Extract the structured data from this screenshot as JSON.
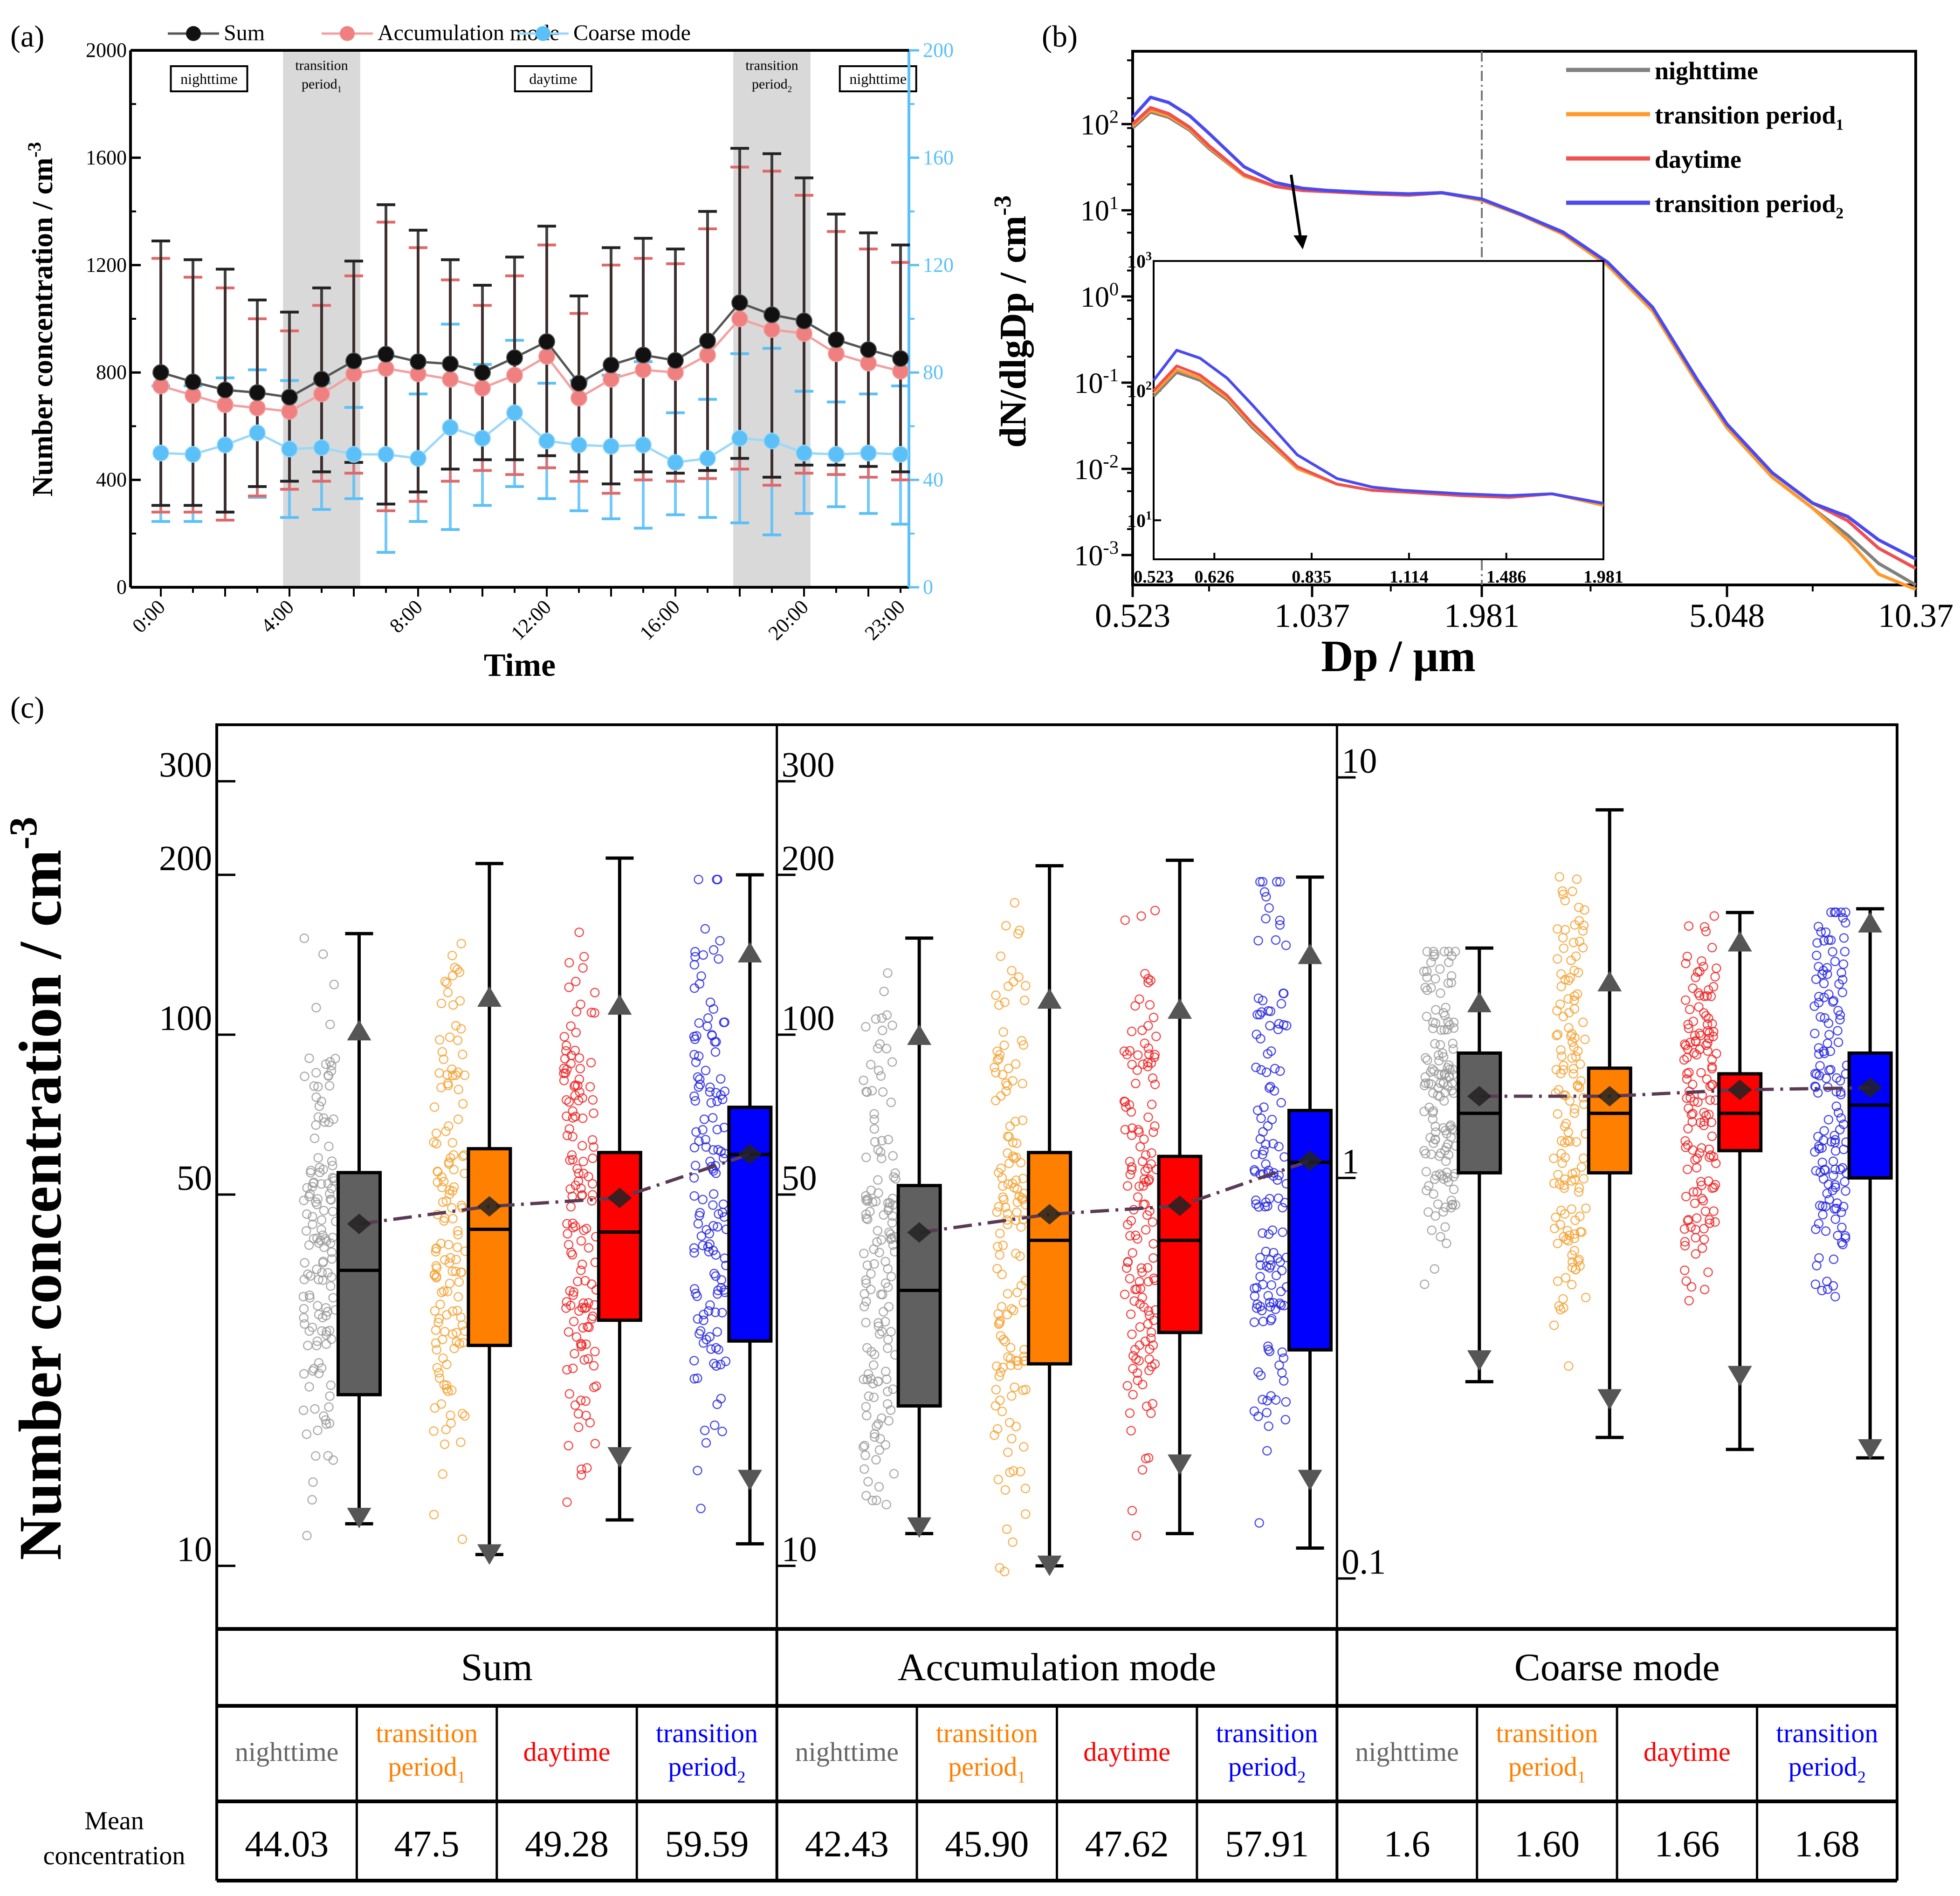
{
  "chart_data": [
    {
      "panel": "(a)",
      "type": "line",
      "xlabel": "Time",
      "ylabel": "Number concentration / cm-3",
      "ylim_left": [
        0,
        2000
      ],
      "yticks_left": [
        "0",
        "400",
        "800",
        "1200",
        "1600",
        "2000"
      ],
      "ylim_right": [
        0,
        200
      ],
      "yticks_right": [
        "0",
        "40",
        "80",
        "120",
        "160",
        "200"
      ],
      "xticks": [
        "0:00",
        "4:00",
        "8:00",
        "12:00",
        "16:00",
        "20:00",
        "23:00"
      ],
      "x": [
        0,
        1,
        2,
        3,
        4,
        5,
        6,
        7,
        8,
        9,
        10,
        11,
        12,
        13,
        14,
        15,
        16,
        17,
        18,
        19,
        20,
        21,
        22,
        23
      ],
      "shaded_periods": [
        {
          "label": "transition period",
          "sub": "1",
          "from": 3.8,
          "to": 6.2
        },
        {
          "label": "transition period",
          "sub": "2",
          "from": 17.8,
          "to": 20.2
        }
      ],
      "period_boxes": [
        {
          "label": "nighttime",
          "at": 1.5
        },
        {
          "label": "daytime",
          "at": 12.2
        },
        {
          "label": "nighttime",
          "at": 22.3
        }
      ],
      "legend": [
        "Sum",
        "Accumulation mode",
        "Coarse mode"
      ],
      "series": [
        {
          "name": "Sum",
          "axis": "left",
          "color": "#000000",
          "values": [
            800,
            765,
            735,
            725,
            708,
            775,
            843,
            868,
            840,
            832,
            800,
            855,
            915,
            760,
            828,
            865,
            845,
            918,
            1060,
            1015,
            992,
            922,
            885,
            852
          ],
          "upper": [
            1290,
            1220,
            1185,
            1070,
            1025,
            1115,
            1215,
            1425,
            1330,
            1220,
            1125,
            1230,
            1345,
            1085,
            1265,
            1300,
            1260,
            1400,
            1635,
            1615,
            1525,
            1390,
            1320,
            1275
          ],
          "lower": [
            305,
            305,
            280,
            375,
            395,
            430,
            465,
            310,
            355,
            440,
            475,
            475,
            490,
            430,
            385,
            430,
            425,
            435,
            480,
            410,
            455,
            455,
            450,
            430
          ]
        },
        {
          "name": "Accumulation mode",
          "axis": "left",
          "color": "#f08080",
          "values": [
            750,
            715,
            680,
            668,
            655,
            720,
            795,
            815,
            795,
            775,
            742,
            790,
            860,
            705,
            775,
            810,
            800,
            865,
            1000,
            960,
            945,
            870,
            835,
            805
          ],
          "upper": [
            1225,
            1155,
            1115,
            1000,
            955,
            1050,
            1160,
            1360,
            1265,
            1145,
            1050,
            1160,
            1275,
            1020,
            1200,
            1225,
            1205,
            1335,
            1565,
            1550,
            1460,
            1325,
            1260,
            1210
          ],
          "lower": [
            280,
            280,
            250,
            340,
            365,
            395,
            425,
            285,
            320,
            395,
            435,
            420,
            445,
            395,
            350,
            400,
            395,
            405,
            440,
            380,
            425,
            420,
            410,
            400
          ]
        },
        {
          "name": "Coarse mode",
          "axis": "right",
          "color": "#5bc0f8",
          "values": [
            50,
            49.5,
            53,
            57.5,
            51.5,
            52,
            49.5,
            49.5,
            48,
            59.5,
            55.5,
            65,
            54.5,
            53,
            52.5,
            53,
            46.5,
            48,
            55.5,
            54.5,
            50,
            49.5,
            50,
            49.5
          ],
          "upper": [
            75,
            75,
            78,
            81,
            77,
            76,
            67,
            86,
            72,
            98,
            83,
            92,
            76,
            77,
            79,
            84,
            65,
            70,
            87,
            89,
            73,
            69,
            72,
            75
          ],
          "lower": [
            24.5,
            24.5,
            28,
            33.5,
            26,
            29,
            33,
            13,
            24.5,
            21.5,
            30.5,
            37.5,
            33,
            28.5,
            25.5,
            22,
            27,
            26,
            24,
            19.5,
            27.5,
            30,
            27.5,
            23.5
          ]
        }
      ]
    },
    {
      "panel": "(b)",
      "type": "line",
      "xlabel": "Dp / μm",
      "ylabel": "dN/dlgDp / cm-3",
      "xscale": "log",
      "yscale": "log",
      "xticks": [
        "0.523",
        "1.037",
        "1.981",
        "5.048",
        "10.37"
      ],
      "yticks": [
        "10-3",
        "10-2",
        "10-1",
        "100",
        "101",
        "102"
      ],
      "ylim": [
        0.0005,
        700
      ],
      "xlim": [
        0.523,
        10.37
      ],
      "vline_at": 1.981,
      "legend": [
        "nighttime",
        "transition period1",
        "daytime",
        "transition period2"
      ],
      "x": [
        0.523,
        0.56,
        0.6,
        0.65,
        0.7,
        0.8,
        0.9,
        1.0,
        1.1,
        1.3,
        1.5,
        1.7,
        1.981,
        2.3,
        2.7,
        3.2,
        3.8,
        4.5,
        5.048,
        6.0,
        7.0,
        8.0,
        9.0,
        10.37
      ],
      "series": [
        {
          "name": "nighttime",
          "color": "#808080",
          "values": [
            90,
            138,
            120,
            85,
            52,
            25,
            19,
            17,
            16.5,
            15.5,
            15,
            16,
            13.5,
            9,
            5.5,
            2.4,
            0.7,
            0.1,
            0.03,
            0.008,
            0.0035,
            0.0017,
            0.0008,
            0.00045
          ]
        },
        {
          "name": "transition period1",
          "color": "#ff9a2a",
          "values": [
            95,
            145,
            125,
            88,
            54,
            25,
            19,
            17,
            16.5,
            15.5,
            15,
            16,
            13,
            8.8,
            5.3,
            2.3,
            0.68,
            0.1,
            0.03,
            0.008,
            0.0035,
            0.0015,
            0.0006,
            0.0004
          ]
        },
        {
          "name": "daytime",
          "color": "#ef5050",
          "values": [
            100,
            155,
            132,
            92,
            56,
            26,
            19,
            17,
            16.5,
            15.5,
            15,
            16,
            13.5,
            9,
            5.5,
            2.5,
            0.75,
            0.11,
            0.033,
            0.009,
            0.004,
            0.0025,
            0.0012,
            0.0007
          ]
        },
        {
          "name": "transition period2",
          "color": "#4a4af0",
          "values": [
            120,
            205,
            178,
            125,
            78,
            32,
            21,
            18,
            17,
            16,
            15.5,
            16,
            13.5,
            9,
            5.6,
            2.5,
            0.75,
            0.11,
            0.033,
            0.009,
            0.004,
            0.0028,
            0.0015,
            0.0009
          ]
        }
      ],
      "inset": {
        "xticks": [
          "0.523",
          "0.626",
          "0.835",
          "1.114",
          "1.486",
          "1.981"
        ],
        "yticks": [
          "101",
          "102",
          "103"
        ],
        "ylim": [
          5,
          1000
        ],
        "xlim": [
          0.523,
          1.981
        ]
      }
    },
    {
      "panel": "(c)",
      "type": "box",
      "ylabel": "Number concentration / cm-3",
      "groups": [
        "nighttime",
        "transition period1",
        "daytime",
        "transition period2"
      ],
      "group_colors": [
        "#606060",
        "#ff7f00",
        "#ff0000",
        "#0000ff"
      ],
      "point_colors": [
        "#999999",
        "#f5a030",
        "#ef2020",
        "#2020e0"
      ],
      "mean_line_color": "#5a3a55",
      "subplots": [
        {
          "name": "Sum",
          "yscale": "log",
          "ylim": [
            8,
            350
          ],
          "yticks": [
            "10",
            "50",
            "100",
            "200",
            "300"
          ],
          "boxes": [
            {
              "q1": 21,
              "median": 36,
              "q3": 55,
              "whisker_low": 12,
              "whisker_high": 155,
              "p1": 12.3,
              "p99": 102,
              "mean": 44.03
            },
            {
              "q1": 26,
              "median": 43,
              "q3": 61,
              "whisker_low": 10.5,
              "whisker_high": 210,
              "p1": 10.5,
              "p99": 118,
              "mean": 47.5
            },
            {
              "q1": 29,
              "median": 42.5,
              "q3": 60,
              "whisker_low": 12.2,
              "whisker_high": 215,
              "p1": 16,
              "p99": 114,
              "mean": 49.28
            },
            {
              "q1": 26.5,
              "median": 59.5,
              "q3": 73,
              "whisker_low": 11,
              "whisker_high": 200,
              "p1": 14.5,
              "p99": 143,
              "mean": 59.59
            }
          ]
        },
        {
          "name": "Accumulation mode",
          "yscale": "log",
          "ylim": [
            8,
            350
          ],
          "yticks": [
            "10",
            "50",
            "100",
            "200",
            "300"
          ],
          "boxes": [
            {
              "q1": 20,
              "median": 33,
              "q3": 52,
              "whisker_low": 11.5,
              "whisker_high": 152,
              "p1": 11.8,
              "p99": 100,
              "mean": 42.43
            },
            {
              "q1": 24,
              "median": 41,
              "q3": 60,
              "whisker_low": 10,
              "whisker_high": 208,
              "p1": 10,
              "p99": 117,
              "mean": 45.9
            },
            {
              "q1": 27.5,
              "median": 41,
              "q3": 59,
              "whisker_low": 11.5,
              "whisker_high": 213,
              "p1": 15.5,
              "p99": 112,
              "mean": 47.62
            },
            {
              "q1": 25.5,
              "median": 57.5,
              "q3": 72,
              "whisker_low": 10.8,
              "whisker_high": 198,
              "p1": 14.5,
              "p99": 142,
              "mean": 57.91
            }
          ]
        },
        {
          "name": "Coarse mode",
          "yscale": "log",
          "ylim": [
            0.08,
            12
          ],
          "yticks": [
            "0.1",
            "1",
            "10"
          ],
          "boxes": [
            {
              "q1": 1.03,
              "median": 1.45,
              "q3": 2.05,
              "whisker_low": 0.31,
              "whisker_high": 3.75,
              "p1": 0.35,
              "p99": 2.75,
              "mean": 1.6
            },
            {
              "q1": 1.03,
              "median": 1.45,
              "q3": 1.88,
              "whisker_low": 0.225,
              "whisker_high": 8.3,
              "p1": 0.28,
              "p99": 3.1,
              "mean": 1.6
            },
            {
              "q1": 1.17,
              "median": 1.45,
              "q3": 1.82,
              "whisker_low": 0.21,
              "whisker_high": 4.6,
              "p1": 0.32,
              "p99": 3.9,
              "mean": 1.66
            },
            {
              "q1": 1.0,
              "median": 1.52,
              "q3": 2.05,
              "whisker_low": 0.2,
              "whisker_high": 4.7,
              "p1": 0.21,
              "p99": 4.35,
              "mean": 1.68
            }
          ]
        }
      ],
      "table": {
        "row_label": "Mean concentration",
        "headers": [
          "Sum",
          "Accumulation mode",
          "Coarse mode"
        ],
        "sub_headers": [
          "nighttime",
          "transition period1",
          "daytime",
          "transition period2"
        ],
        "values": [
          [
            "44.03",
            "47.5",
            "49.28",
            "59.59"
          ],
          [
            "42.43",
            "45.90",
            "47.62",
            "57.91"
          ],
          [
            "1.6",
            "1.60",
            "1.66",
            "1.68"
          ]
        ]
      }
    }
  ],
  "labels": {
    "panel_a": "(a)",
    "panel_b": "(b)",
    "panel_c": "(c)",
    "a_ylabel": "Number concentration / cm",
    "a_ylabel_sup": "-3",
    "a_xlabel": "Time",
    "b_ylabel": "dN/dlgDp / cm",
    "b_ylabel_sup": "-3",
    "b_xlabel": "Dp / μm",
    "c_ylabel": "Number concentration / cm",
    "c_ylabel_sup": "-3",
    "transition": "transition",
    "period": "period",
    "mean_label_1": "Mean",
    "mean_label_2": "concentration",
    "sub_nighttime": "nighttime",
    "sub_transition": "transition",
    "sub_period": "period",
    "sub_daytime": "daytime"
  }
}
